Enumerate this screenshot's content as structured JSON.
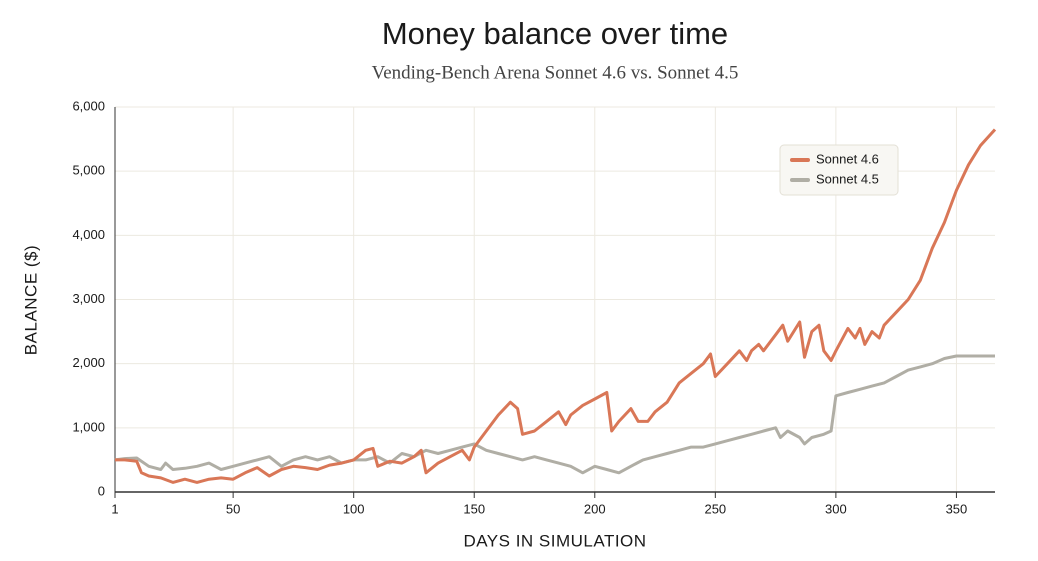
{
  "chart_data": {
    "type": "line",
    "title": "Money balance over time",
    "subtitle": "Vending-Bench Arena Sonnet 4.6 vs. Sonnet 4.5",
    "x_label": "DAYS IN SIMULATION",
    "y_label": "BALANCE ($)",
    "xlim": [
      1,
      366
    ],
    "xticks": [
      1,
      50,
      100,
      150,
      200,
      250,
      300,
      350
    ],
    "ylim": [
      0,
      6000
    ],
    "yticks": [
      0,
      {
        "value": 1000,
        "label": "1,000"
      },
      {
        "value": 2000,
        "label": "2,000"
      },
      {
        "value": 3000,
        "label": "3,000"
      },
      {
        "value": 4000,
        "label": "4,000"
      },
      {
        "value": 5000,
        "label": "5,000"
      },
      {
        "value": 6000,
        "label": "6,000"
      }
    ],
    "grid": true,
    "legend": "upper right",
    "series": [
      {
        "name": "Sonnet 4.6",
        "color": "#d97757",
        "x": [
          1,
          5,
          10,
          12,
          15,
          20,
          25,
          30,
          35,
          40,
          45,
          50,
          55,
          60,
          65,
          70,
          75,
          80,
          85,
          90,
          95,
          100,
          105,
          108,
          110,
          115,
          120,
          125,
          128,
          130,
          135,
          140,
          145,
          148,
          150,
          155,
          160,
          165,
          168,
          170,
          175,
          180,
          185,
          188,
          190,
          195,
          200,
          205,
          207,
          210,
          215,
          218,
          222,
          225,
          230,
          235,
          240,
          245,
          248,
          250,
          255,
          260,
          263,
          265,
          268,
          270,
          275,
          278,
          280,
          285,
          287,
          290,
          293,
          295,
          298,
          300,
          305,
          308,
          310,
          312,
          315,
          318,
          320,
          325,
          330,
          335,
          340,
          345,
          350,
          355,
          360,
          366
        ],
        "values": [
          500,
          500,
          480,
          300,
          250,
          220,
          150,
          200,
          150,
          200,
          220,
          200,
          300,
          380,
          250,
          350,
          400,
          380,
          350,
          420,
          450,
          500,
          650,
          680,
          400,
          480,
          450,
          550,
          650,
          300,
          450,
          550,
          650,
          500,
          700,
          950,
          1200,
          1400,
          1300,
          900,
          950,
          1100,
          1250,
          1050,
          1200,
          1350,
          1450,
          1550,
          950,
          1100,
          1300,
          1100,
          1100,
          1250,
          1400,
          1700,
          1850,
          2000,
          2150,
          1800,
          2000,
          2200,
          2050,
          2200,
          2300,
          2200,
          2450,
          2600,
          2350,
          2650,
          2100,
          2500,
          2600,
          2200,
          2050,
          2200,
          2550,
          2400,
          2550,
          2300,
          2500,
          2400,
          2600,
          2800,
          3000,
          3300,
          3800,
          4200,
          4700,
          5100,
          5400,
          5650
        ]
      },
      {
        "name": "Sonnet 4.5",
        "color": "#b0aea5",
        "x": [
          1,
          5,
          10,
          15,
          20,
          22,
          25,
          30,
          35,
          40,
          45,
          50,
          55,
          60,
          65,
          70,
          75,
          80,
          85,
          90,
          95,
          100,
          105,
          110,
          115,
          120,
          125,
          130,
          135,
          140,
          145,
          150,
          155,
          160,
          165,
          170,
          175,
          180,
          185,
          190,
          195,
          200,
          205,
          210,
          215,
          220,
          225,
          230,
          235,
          240,
          245,
          250,
          255,
          260,
          265,
          270,
          275,
          277,
          280,
          285,
          287,
          290,
          295,
          298,
          300,
          305,
          310,
          315,
          320,
          325,
          330,
          335,
          340,
          345,
          350,
          360,
          366
        ],
        "values": [
          500,
          520,
          530,
          400,
          350,
          450,
          350,
          370,
          400,
          450,
          350,
          400,
          450,
          500,
          550,
          400,
          500,
          550,
          500,
          550,
          450,
          500,
          500,
          550,
          450,
          600,
          550,
          650,
          600,
          650,
          700,
          750,
          650,
          600,
          550,
          500,
          550,
          500,
          450,
          400,
          300,
          400,
          350,
          300,
          400,
          500,
          550,
          600,
          650,
          700,
          700,
          750,
          800,
          850,
          900,
          950,
          1000,
          850,
          950,
          850,
          750,
          850,
          900,
          950,
          1500,
          1550,
          1600,
          1650,
          1700,
          1800,
          1900,
          1950,
          2000,
          2080,
          2120,
          2120,
          2120
        ]
      }
    ]
  }
}
